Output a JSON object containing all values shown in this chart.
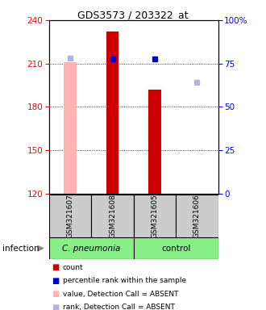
{
  "title": "GDS3573 / 203322_at",
  "samples": [
    "GSM321607",
    "GSM321608",
    "GSM321605",
    "GSM321606"
  ],
  "ylim_left": [
    120,
    240
  ],
  "yticks_left": [
    120,
    150,
    180,
    210,
    240
  ],
  "yticks_right": [
    0,
    25,
    50,
    75,
    100
  ],
  "ytick_labels_right": [
    "0",
    "25",
    "50",
    "75",
    "100%"
  ],
  "count_values": [
    null,
    232,
    192,
    null
  ],
  "count_color": "#cc0000",
  "count_absent_values": [
    211,
    null,
    null,
    null
  ],
  "count_absent_color": "#ffb3b3",
  "percentile_values": [
    null,
    213,
    213,
    null
  ],
  "percentile_color": "#0000cc",
  "percentile_absent_values": [
    214,
    null,
    null,
    197
  ],
  "percentile_absent_color": "#b3b3dd",
  "bar_bottom": 120,
  "bar_width": 0.3,
  "legend_items": [
    {
      "label": "count",
      "color": "#cc0000"
    },
    {
      "label": "percentile rank within the sample",
      "color": "#0000cc"
    },
    {
      "label": "value, Detection Call = ABSENT",
      "color": "#ffb3b3"
    },
    {
      "label": "rank, Detection Call = ABSENT",
      "color": "#b3b3dd"
    }
  ],
  "infection_label": "infection",
  "group_label_1": "C. pneumonia",
  "group_label_2": "control",
  "group_bg_color": "#88ee88",
  "sample_bg_color": "#cccccc",
  "x_positions": [
    0.5,
    1.5,
    2.5,
    3.5
  ]
}
